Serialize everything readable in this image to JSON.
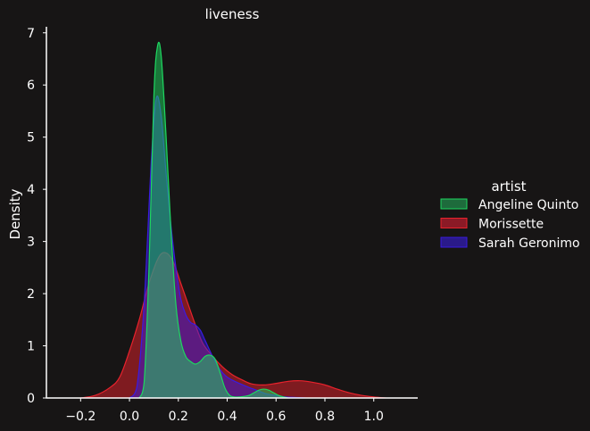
{
  "chart_data": {
    "type": "area",
    "title": "liveness",
    "xlabel": "",
    "ylabel": "Density",
    "xlim": [
      -0.34,
      1.18
    ],
    "ylim": [
      0,
      7.15
    ],
    "xticks": [
      -0.2,
      0.0,
      0.2,
      0.4,
      0.6,
      0.8,
      1.0
    ],
    "xtick_labels": [
      "−0.2",
      "0.0",
      "0.2",
      "0.4",
      "0.6",
      "0.8",
      "1.0"
    ],
    "yticks": [
      0,
      1,
      2,
      3,
      4,
      5,
      6,
      7
    ],
    "ytick_labels": [
      "0",
      "1",
      "2",
      "3",
      "4",
      "5",
      "6",
      "7"
    ],
    "grid": false,
    "legend": {
      "title": "artist",
      "placement": "right"
    },
    "series": [
      {
        "name": "Angeline Quinto",
        "color": "#1ed760",
        "fill": "#1e6b3c",
        "x": [
          0.04,
          0.06,
          0.08,
          0.1,
          0.115,
          0.13,
          0.15,
          0.17,
          0.19,
          0.21,
          0.23,
          0.25,
          0.27,
          0.29,
          0.31,
          0.33,
          0.35,
          0.37,
          0.39,
          0.41,
          0.43,
          0.45,
          0.47,
          0.49,
          0.51,
          0.53,
          0.55,
          0.57,
          0.59,
          0.61,
          0.63,
          0.65
        ],
        "y": [
          0.0,
          0.3,
          2.5,
          5.8,
          6.75,
          6.55,
          5.0,
          3.2,
          1.8,
          1.1,
          0.8,
          0.7,
          0.65,
          0.7,
          0.8,
          0.82,
          0.75,
          0.5,
          0.2,
          0.05,
          0.02,
          0.02,
          0.03,
          0.05,
          0.1,
          0.15,
          0.17,
          0.15,
          0.1,
          0.05,
          0.02,
          0.0
        ]
      },
      {
        "name": "Morissette",
        "color": "#e8222c",
        "fill": "#8b1a26",
        "x": [
          -0.2,
          -0.14,
          -0.08,
          -0.04,
          0.0,
          0.04,
          0.08,
          0.12,
          0.15,
          0.18,
          0.21,
          0.24,
          0.27,
          0.3,
          0.34,
          0.38,
          0.42,
          0.46,
          0.5,
          0.55,
          0.6,
          0.65,
          0.7,
          0.75,
          0.8,
          0.85,
          0.9,
          0.95,
          1.0,
          1.05
        ],
        "y": [
          0.0,
          0.05,
          0.2,
          0.4,
          0.9,
          1.5,
          2.2,
          2.7,
          2.78,
          2.6,
          2.2,
          1.8,
          1.4,
          1.05,
          0.8,
          0.6,
          0.45,
          0.35,
          0.27,
          0.25,
          0.28,
          0.32,
          0.33,
          0.3,
          0.25,
          0.17,
          0.1,
          0.05,
          0.02,
          0.0
        ]
      },
      {
        "name": "Sarah Geronimo",
        "color": "#3a1be0",
        "fill": "#2a1a8a",
        "x": [
          0.0,
          0.03,
          0.06,
          0.09,
          0.11,
          0.13,
          0.15,
          0.17,
          0.19,
          0.21,
          0.23,
          0.25,
          0.27,
          0.29,
          0.31,
          0.34,
          0.37,
          0.4,
          0.44,
          0.48,
          0.52,
          0.56,
          0.6,
          0.64,
          0.68,
          0.72
        ],
        "y": [
          0.0,
          0.2,
          1.8,
          4.6,
          5.75,
          5.4,
          4.3,
          3.3,
          2.5,
          1.9,
          1.6,
          1.45,
          1.4,
          1.3,
          1.1,
          0.8,
          0.55,
          0.4,
          0.3,
          0.22,
          0.15,
          0.08,
          0.05,
          0.02,
          0.01,
          0.0
        ]
      }
    ]
  }
}
